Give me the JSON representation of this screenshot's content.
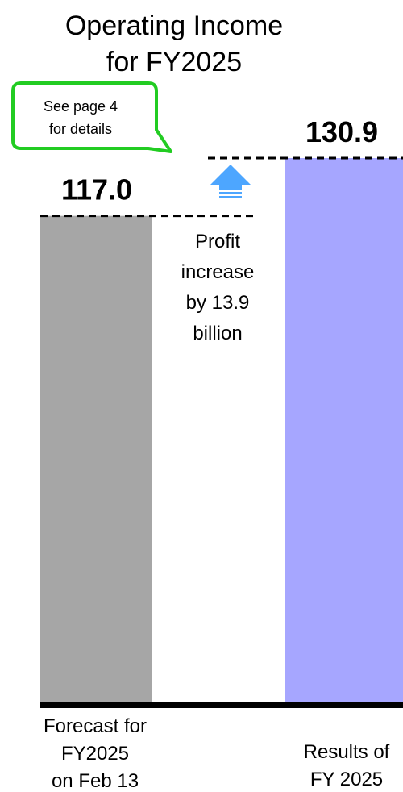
{
  "chart_data": {
    "type": "bar",
    "title_lines": [
      "Operating Income",
      "for FY2025"
    ],
    "categories": [
      [
        "Forecast for",
        "FY2025",
        "on Feb 13"
      ],
      [
        "Results of",
        "FY 2025"
      ]
    ],
    "values": [
      117.0,
      130.9
    ],
    "value_labels": [
      "117.0",
      "130.9"
    ],
    "colors": [
      "#a6a6a6",
      "#a6a6ff"
    ],
    "ylim": [
      0,
      130.9
    ],
    "grid": false,
    "annotation": {
      "lines": [
        "Profit",
        "increase",
        "by 13.9",
        "billion"
      ],
      "arrow_color": "#4da6ff"
    },
    "callout": {
      "lines": [
        "See page 4",
        "for details"
      ],
      "border_color": "#22cc22"
    }
  }
}
